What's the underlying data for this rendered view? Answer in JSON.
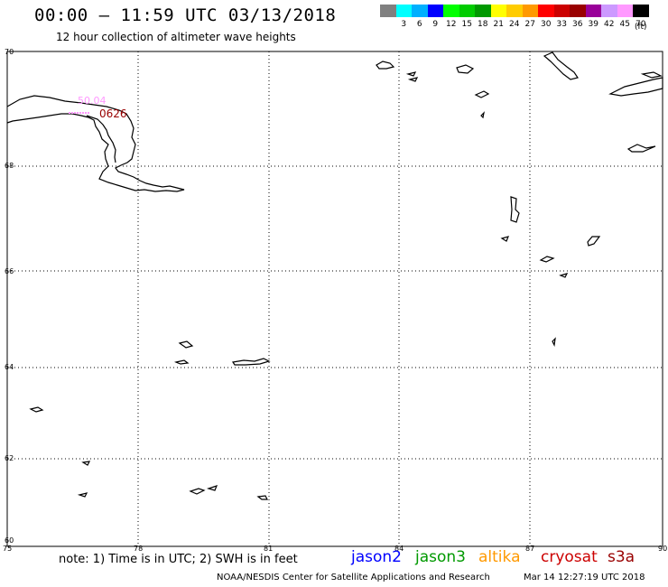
{
  "header": {
    "title": "00:00 – 11:59 UTC 03/13/2018",
    "subtitle": "12 hour collection of altimeter wave heights"
  },
  "colorbar": {
    "unit": "(ft)",
    "swatches": [
      {
        "color": "#808080",
        "label": ""
      },
      {
        "color": "#00ffff",
        "label": "3"
      },
      {
        "color": "#00b0ff",
        "label": "6"
      },
      {
        "color": "#0000ff",
        "label": "9"
      },
      {
        "color": "#00ff00",
        "label": "12"
      },
      {
        "color": "#00cc00",
        "label": "15"
      },
      {
        "color": "#009900",
        "label": "18"
      },
      {
        "color": "#ffff00",
        "label": "21"
      },
      {
        "color": "#ffcc00",
        "label": "24"
      },
      {
        "color": "#ff9900",
        "label": "27"
      },
      {
        "color": "#ff0000",
        "label": "30"
      },
      {
        "color": "#cc0000",
        "label": "33"
      },
      {
        "color": "#990000",
        "label": "36"
      },
      {
        "color": "#990099",
        "label": "39"
      },
      {
        "color": "#cc99ff",
        "label": "42"
      },
      {
        "color": "#ff99ff",
        "label": "45"
      },
      {
        "color": "#000000",
        "label": "70"
      }
    ]
  },
  "map": {
    "lon_range": [
      75,
      90
    ],
    "lat_range": [
      60,
      70
    ],
    "lat_ticks": [
      "70",
      "68",
      "66",
      "64",
      "62",
      "60"
    ],
    "lon_ticks": [
      "75",
      "78",
      "81",
      "84",
      "87",
      "90"
    ],
    "observations": [
      {
        "label": "50.04",
        "color": "#ff99ff"
      },
      {
        "label": "0626",
        "color": "#990000"
      }
    ]
  },
  "footer": {
    "note": "note: 1) Time is in UTC; 2) SWH is in feet",
    "satellites": [
      {
        "name": "jason2",
        "color": "#0000ff"
      },
      {
        "name": "jason3",
        "color": "#009900"
      },
      {
        "name": "altika",
        "color": "#ff9900"
      },
      {
        "name": "cryosat",
        "color": "#cc0000"
      },
      {
        "name": "s3a",
        "color": "#990000"
      }
    ],
    "credit": "NOAA/NESDIS Center for Satellite Applications and Research",
    "timestamp": "Mar 14 12:27:19 UTC 2018"
  }
}
